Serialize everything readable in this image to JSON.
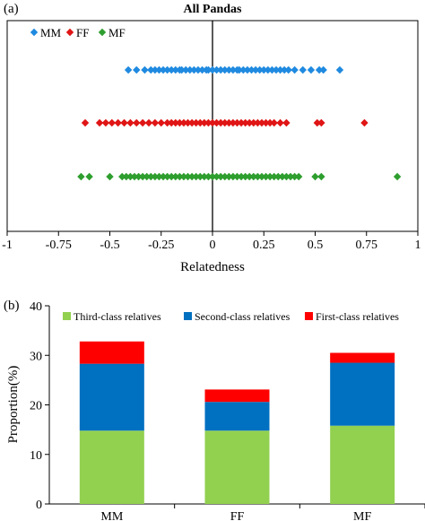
{
  "chart_data": [
    {
      "panel_label": "(a)",
      "type": "scatter",
      "title": "All Pandas",
      "xlabel": "Relatedness",
      "ylabel": "",
      "xlim": [
        -1,
        1
      ],
      "xticks": [
        -1,
        -0.75,
        -0.5,
        -0.25,
        0,
        0.25,
        0.5,
        0.75,
        1
      ],
      "xtick_labels": [
        "-1",
        "-0.75",
        "-0.5",
        "-0.25",
        "0",
        "0.25",
        "0.5",
        "0.75",
        "1"
      ],
      "legend_position": "top-left",
      "series": [
        {
          "name": "MM",
          "color": "#1f8ae0",
          "marker": "diamond",
          "x": [
            -0.41,
            -0.37,
            -0.33,
            -0.3,
            -0.28,
            -0.26,
            -0.24,
            -0.22,
            -0.2,
            -0.18,
            -0.16,
            -0.15,
            -0.13,
            -0.11,
            -0.09,
            -0.07,
            -0.05,
            -0.03,
            -0.02,
            0.0,
            0.02,
            0.04,
            0.06,
            0.08,
            0.1,
            0.12,
            0.13,
            0.15,
            0.17,
            0.19,
            0.21,
            0.23,
            0.25,
            0.27,
            0.29,
            0.31,
            0.33,
            0.35,
            0.37,
            0.4,
            0.44,
            0.48,
            0.52,
            0.54,
            0.62
          ]
        },
        {
          "name": "FF",
          "color": "#e01515",
          "marker": "diamond",
          "x": [
            -0.62,
            -0.55,
            -0.52,
            -0.49,
            -0.46,
            -0.43,
            -0.4,
            -0.37,
            -0.34,
            -0.31,
            -0.28,
            -0.25,
            -0.22,
            -0.2,
            -0.18,
            -0.16,
            -0.14,
            -0.12,
            -0.1,
            -0.08,
            -0.06,
            -0.04,
            -0.02,
            0.0,
            0.02,
            0.04,
            0.06,
            0.08,
            0.1,
            0.12,
            0.14,
            0.16,
            0.18,
            0.2,
            0.22,
            0.24,
            0.26,
            0.28,
            0.3,
            0.33,
            0.36,
            0.51,
            0.53,
            0.74
          ]
        },
        {
          "name": "MF",
          "color": "#2e9e2e",
          "marker": "diamond",
          "x": [
            -0.64,
            -0.6,
            -0.5,
            -0.44,
            -0.42,
            -0.4,
            -0.38,
            -0.36,
            -0.34,
            -0.32,
            -0.3,
            -0.28,
            -0.26,
            -0.24,
            -0.22,
            -0.2,
            -0.18,
            -0.16,
            -0.14,
            -0.12,
            -0.1,
            -0.08,
            -0.06,
            -0.04,
            -0.02,
            0.0,
            0.02,
            0.04,
            0.06,
            0.08,
            0.1,
            0.12,
            0.14,
            0.16,
            0.18,
            0.2,
            0.22,
            0.24,
            0.26,
            0.28,
            0.3,
            0.32,
            0.34,
            0.36,
            0.38,
            0.4,
            0.42,
            0.5,
            0.53,
            0.9
          ]
        }
      ]
    },
    {
      "panel_label": "(b)",
      "type": "bar",
      "stacked": true,
      "title": "",
      "xlabel": "",
      "ylabel": "Proportion(%)",
      "ylim": [
        0,
        40
      ],
      "yticks": [
        0,
        10,
        20,
        30,
        40
      ],
      "categories": [
        "MM",
        "FF",
        "MF"
      ],
      "legend_position": "top",
      "series": [
        {
          "name": "Third-class relatives",
          "color": "#92d050",
          "values": [
            14.8,
            14.8,
            15.8
          ]
        },
        {
          "name": "Second-class relatives",
          "color": "#0070c0",
          "values": [
            13.5,
            5.8,
            12.7
          ]
        },
        {
          "name": "First-class relatives",
          "color": "#ff0000",
          "values": [
            4.5,
            2.5,
            2.0
          ]
        }
      ]
    }
  ]
}
